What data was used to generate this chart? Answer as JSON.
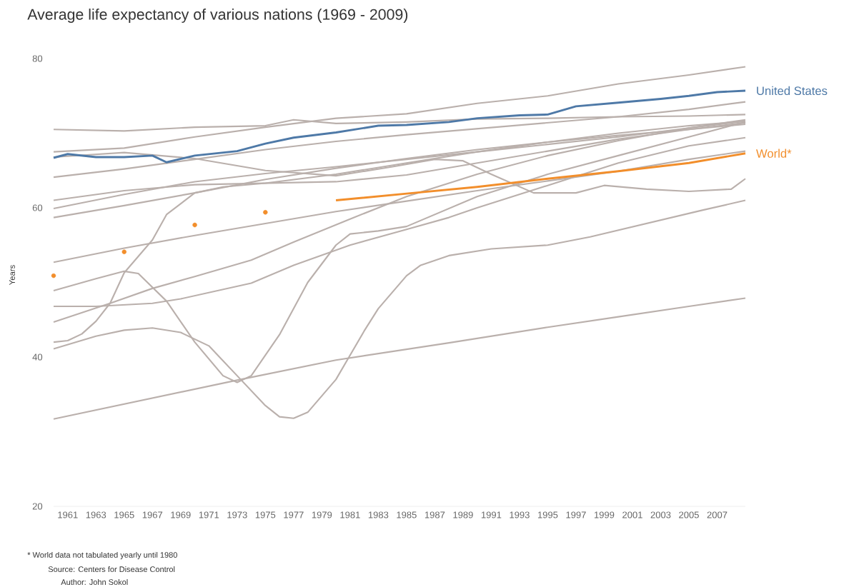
{
  "chart_data": {
    "type": "line",
    "title": "Average life expectancy of various nations (1969 - 2009)",
    "ylabel": "Years",
    "xlim": [
      1960,
      2009
    ],
    "ylim": [
      20,
      80
    ],
    "xticks": [
      1961,
      1963,
      1965,
      1967,
      1969,
      1971,
      1973,
      1975,
      1977,
      1979,
      1981,
      1983,
      1985,
      1987,
      1989,
      1991,
      1993,
      1995,
      1997,
      1999,
      2001,
      2003,
      2005,
      2007
    ],
    "yticks": [
      20,
      40,
      60,
      80
    ],
    "annotations": [
      "* World data not tabulated yearly until 1980",
      "Source: Centers for Disease Control",
      "Author: John Sokol"
    ],
    "series": [
      {
        "color": "#bab0ac",
        "x": [
          1960,
          1965,
          1970,
          1975,
          1977,
          1980,
          1985,
          1990,
          1995,
          2000,
          2005,
          2009
        ],
        "values": [
          70.5,
          70.3,
          70.8,
          71.0,
          71.8,
          71.3,
          71.5,
          71.9,
          72.0,
          72.2,
          72.3,
          72.5
        ]
      },
      {
        "color": "#bab0ac",
        "x": [
          1960,
          1965,
          1970,
          1975,
          1980,
          1985,
          1990,
          1995,
          2000,
          2005,
          2009
        ],
        "values": [
          67.5,
          68.0,
          69.5,
          70.8,
          72.0,
          72.6,
          74.0,
          75.0,
          76.6,
          77.8,
          78.9
        ]
      },
      {
        "color": "#bab0ac",
        "x": [
          1960,
          1965,
          1970,
          1975,
          1980,
          1984,
          1987,
          1989,
          1991,
          1994,
          1997,
          1999,
          2002,
          2005,
          2008,
          2009
        ],
        "values": [
          66.8,
          67.4,
          66.6,
          65.0,
          64.3,
          65.5,
          66.5,
          66.3,
          64.5,
          62.0,
          62.0,
          63.0,
          62.5,
          62.2,
          62.5,
          63.9
        ]
      },
      {
        "color": "#bab0ac",
        "x": [
          1960,
          1965,
          1970,
          1975,
          1980,
          1985,
          1990,
          1995,
          2000,
          2005,
          2009
        ],
        "values": [
          64.1,
          65.2,
          66.5,
          67.8,
          68.9,
          69.8,
          70.6,
          71.4,
          72.2,
          73.2,
          74.2
        ]
      },
      {
        "color": "#bab0ac",
        "x": [
          1960,
          1965,
          1970,
          1975,
          1980,
          1985,
          1990,
          1995,
          2000,
          2005,
          2009
        ],
        "values": [
          61.0,
          62.3,
          63.1,
          63.3,
          63.5,
          64.4,
          66.0,
          67.6,
          69.2,
          70.5,
          71.4
        ]
      },
      {
        "color": "#bab0ac",
        "x": [
          1960,
          1965,
          1970,
          1975,
          1980,
          1985,
          1990,
          1995,
          2000,
          2005,
          2009
        ],
        "values": [
          59.9,
          61.8,
          63.5,
          64.6,
          65.5,
          66.5,
          67.5,
          68.5,
          69.5,
          70.7,
          71.6
        ]
      },
      {
        "color": "#bab0ac",
        "x": [
          1960,
          1965,
          1970,
          1975,
          1980,
          1985,
          1990,
          1995,
          2000,
          2005,
          2009
        ],
        "values": [
          58.7,
          60.3,
          62.0,
          63.8,
          65.3,
          66.6,
          67.8,
          68.8,
          69.7,
          70.5,
          71.2
        ]
      },
      {
        "color": "#bab0ac",
        "x": [
          1960,
          1965,
          1970,
          1975,
          1980,
          1985,
          1990,
          1995,
          2000,
          2005,
          2009
        ],
        "values": [
          52.7,
          54.6,
          56.3,
          57.9,
          59.5,
          60.9,
          62.3,
          63.6,
          64.9,
          66.5,
          67.6
        ]
      },
      {
        "color": "#bab0ac",
        "x": [
          1960,
          1963,
          1965,
          1966,
          1968,
          1970,
          1972,
          1973,
          1974,
          1976,
          1978,
          1980,
          1981,
          1983,
          1985,
          1990,
          1995,
          2000,
          2005,
          2009
        ],
        "values": [
          48.9,
          50.5,
          51.5,
          51.2,
          47.5,
          42.0,
          37.5,
          36.6,
          37.5,
          43.0,
          50.0,
          55.0,
          56.5,
          56.9,
          57.5,
          61.5,
          64.5,
          67.0,
          69.5,
          71.5
        ]
      },
      {
        "color": "#bab0ac",
        "x": [
          1960,
          1963,
          1965,
          1967,
          1969,
          1971,
          1973,
          1975,
          1976,
          1977,
          1978,
          1980,
          1982,
          1983,
          1985,
          1986,
          1988,
          1991,
          1995,
          1998,
          2002,
          2006,
          2009
        ],
        "values": [
          41.1,
          42.8,
          43.6,
          43.9,
          43.3,
          41.5,
          37.5,
          33.5,
          32.0,
          31.8,
          32.6,
          37.0,
          43.5,
          46.5,
          50.9,
          52.3,
          53.6,
          54.5,
          55.0,
          56.1,
          57.9,
          59.7,
          61.0
        ]
      },
      {
        "color": "#bab0ac",
        "x": [
          1960,
          1963,
          1967,
          1969,
          1974,
          1977,
          1981,
          1985,
          1988,
          1990,
          1995,
          2000,
          2005,
          2009
        ],
        "values": [
          46.8,
          46.8,
          47.2,
          47.8,
          49.9,
          52.3,
          55.0,
          57.1,
          58.7,
          60.0,
          63.0,
          66.0,
          68.3,
          69.4
        ]
      },
      {
        "color": "#bab0ac",
        "x": [
          1960,
          1964,
          1967,
          1970,
          1974,
          1977,
          1981,
          1985,
          1990,
          1995,
          2000,
          2005,
          2009
        ],
        "values": [
          44.7,
          47.2,
          49.2,
          50.8,
          53.0,
          55.4,
          58.5,
          61.5,
          64.5,
          67.0,
          69.0,
          70.7,
          71.8
        ]
      },
      {
        "color": "#bab0ac",
        "x": [
          1960,
          1961,
          1962,
          1963,
          1964,
          1965,
          1967,
          1968,
          1970,
          1972,
          1975,
          1980,
          1985,
          1990,
          1995,
          2000,
          2005,
          2009
        ],
        "values": [
          42.0,
          42.2,
          43.1,
          44.8,
          47.2,
          51.3,
          55.7,
          59.1,
          62.0,
          62.8,
          63.3,
          64.5,
          66.0,
          67.5,
          68.8,
          70.0,
          71.0,
          71.6
        ]
      },
      {
        "color": "#bab0ac",
        "x": [
          1960,
          1973,
          1980,
          1988,
          1995,
          2000,
          2005,
          2009
        ],
        "values": [
          31.7,
          36.9,
          39.6,
          41.9,
          44.0,
          45.4,
          46.8,
          47.9
        ]
      },
      {
        "name": "United States",
        "color": "#4e79a7",
        "x": [
          1960,
          1961,
          1963,
          1965,
          1967,
          1968,
          1970,
          1973,
          1975,
          1977,
          1980,
          1983,
          1985,
          1988,
          1990,
          1993,
          1995,
          1997,
          2000,
          2003,
          2005,
          2007,
          2009
        ],
        "values": [
          66.7,
          67.2,
          66.8,
          66.8,
          67.0,
          66.1,
          67.0,
          67.6,
          68.6,
          69.4,
          70.1,
          71.0,
          71.1,
          71.5,
          72.0,
          72.4,
          72.5,
          73.6,
          74.1,
          74.6,
          75.0,
          75.5,
          75.7
        ]
      },
      {
        "type": "scatter",
        "marker": "circle",
        "color": "#f28e2b",
        "x": [
          1960,
          1965,
          1970,
          1975
        ],
        "values": [
          50.9,
          54.1,
          57.7,
          59.4
        ]
      },
      {
        "name": "World*",
        "color": "#f28e2b",
        "x": [
          1980,
          1985,
          1990,
          1995,
          2000,
          2005,
          2009
        ],
        "values": [
          61.0,
          61.9,
          62.8,
          63.9,
          64.9,
          66.0,
          67.3
        ]
      }
    ]
  }
}
